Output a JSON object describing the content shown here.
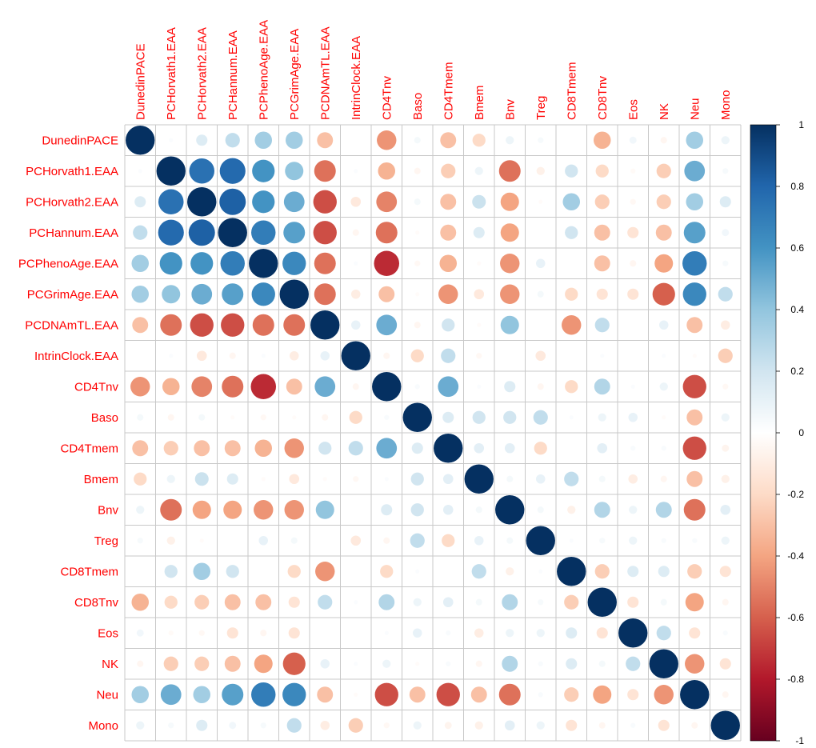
{
  "chart_data": {
    "type": "heatmap",
    "subtype": "correlation-circles",
    "title": "",
    "variables": [
      "DunedinPACE",
      "PCHorvath1.EAA",
      "PCHorvath2.EAA",
      "PCHannum.EAA",
      "PCPhenoAge.EAA",
      "PCGrimAge.EAA",
      "PCDNAmTL.EAA",
      "IntrinClock.EAA",
      "CD4Tnv",
      "Baso",
      "CD4Tmem",
      "Bmem",
      "Bnv",
      "Treg",
      "CD8Tmem",
      "CD8Tnv",
      "Eos",
      "NK",
      "Neu",
      "Mono"
    ],
    "matrix": [
      [
        1.0,
        0.02,
        0.15,
        0.25,
        0.35,
        0.35,
        -0.3,
        0.0,
        -0.45,
        0.05,
        -0.3,
        -0.2,
        0.08,
        0.04,
        0.0,
        -0.35,
        0.06,
        -0.05,
        0.35,
        0.08
      ],
      [
        0.02,
        1.0,
        0.75,
        0.78,
        0.6,
        0.4,
        -0.55,
        0.02,
        -0.35,
        -0.05,
        -0.25,
        0.08,
        -0.55,
        -0.08,
        0.2,
        -0.2,
        -0.03,
        -0.25,
        0.5,
        0.04
      ],
      [
        0.15,
        0.75,
        1.0,
        0.82,
        0.6,
        0.5,
        -0.65,
        -0.12,
        -0.5,
        0.05,
        -0.3,
        0.22,
        -0.4,
        -0.02,
        0.35,
        -0.25,
        -0.04,
        -0.25,
        0.35,
        0.15
      ],
      [
        0.25,
        0.78,
        0.82,
        1.0,
        0.7,
        0.55,
        -0.65,
        -0.05,
        -0.55,
        -0.02,
        -0.3,
        0.15,
        -0.4,
        0.0,
        0.2,
        -0.3,
        -0.15,
        -0.3,
        0.55,
        0.06
      ],
      [
        0.35,
        0.6,
        0.6,
        0.7,
        1.0,
        0.65,
        -0.55,
        0.02,
        -0.75,
        -0.04,
        -0.35,
        -0.02,
        -0.45,
        0.1,
        0.0,
        -0.3,
        -0.05,
        -0.4,
        0.7,
        0.04
      ],
      [
        0.35,
        0.4,
        0.5,
        0.55,
        0.65,
        1.0,
        -0.55,
        -0.1,
        -0.3,
        -0.02,
        -0.45,
        -0.12,
        -0.45,
        0.05,
        -0.2,
        -0.15,
        -0.15,
        -0.6,
        0.65,
        0.25
      ],
      [
        -0.3,
        -0.55,
        -0.65,
        -0.65,
        -0.55,
        -0.55,
        1.0,
        0.1,
        0.5,
        -0.05,
        0.2,
        -0.02,
        0.4,
        0.0,
        -0.45,
        0.25,
        0.0,
        0.1,
        -0.3,
        -0.1
      ],
      [
        0.0,
        0.02,
        -0.12,
        -0.05,
        0.02,
        -0.1,
        0.1,
        1.0,
        -0.05,
        -0.2,
        0.25,
        -0.04,
        0.0,
        -0.12,
        0.0,
        0.02,
        0.0,
        0.02,
        -0.02,
        -0.25
      ],
      [
        -0.45,
        -0.35,
        -0.5,
        -0.55,
        -0.75,
        -0.3,
        0.5,
        -0.05,
        1.0,
        0.03,
        0.5,
        0.02,
        0.15,
        -0.05,
        -0.2,
        0.3,
        0.02,
        0.08,
        -0.65,
        -0.04
      ],
      [
        0.05,
        -0.05,
        0.05,
        -0.02,
        -0.04,
        -0.02,
        -0.05,
        -0.2,
        0.03,
        1.0,
        0.15,
        0.2,
        0.2,
        0.25,
        0.02,
        0.08,
        0.1,
        -0.02,
        -0.3,
        0.08
      ],
      [
        -0.3,
        -0.25,
        -0.3,
        -0.3,
        -0.35,
        -0.45,
        0.2,
        0.25,
        0.5,
        0.15,
        1.0,
        0.12,
        0.12,
        -0.2,
        0.0,
        0.12,
        0.03,
        0.03,
        -0.65,
        -0.06
      ],
      [
        -0.2,
        0.08,
        0.22,
        0.15,
        -0.02,
        -0.12,
        -0.02,
        -0.04,
        0.02,
        0.2,
        0.12,
        1.0,
        0.05,
        0.1,
        0.25,
        0.05,
        -0.1,
        -0.05,
        -0.3,
        -0.08
      ],
      [
        0.08,
        -0.55,
        -0.4,
        -0.4,
        -0.45,
        -0.45,
        0.4,
        0.0,
        0.15,
        0.2,
        0.12,
        0.05,
        1.0,
        0.05,
        -0.08,
        0.3,
        0.08,
        0.3,
        -0.55,
        0.12
      ],
      [
        0.04,
        -0.08,
        -0.02,
        0.0,
        0.1,
        0.05,
        0.0,
        -0.12,
        -0.05,
        0.25,
        -0.2,
        0.1,
        0.05,
        1.0,
        0.02,
        0.04,
        0.08,
        0.03,
        0.03,
        0.08
      ],
      [
        0.0,
        0.2,
        0.35,
        0.2,
        0.0,
        -0.2,
        -0.45,
        0.0,
        -0.2,
        0.02,
        0.0,
        0.25,
        -0.08,
        0.02,
        1.0,
        -0.25,
        0.15,
        0.15,
        -0.25,
        -0.15
      ],
      [
        -0.35,
        -0.2,
        -0.25,
        -0.3,
        -0.3,
        -0.15,
        0.25,
        0.02,
        0.3,
        0.08,
        0.12,
        0.05,
        0.3,
        0.04,
        -0.25,
        1.0,
        -0.15,
        0.05,
        -0.4,
        -0.05
      ],
      [
        0.06,
        -0.03,
        -0.04,
        -0.15,
        -0.05,
        -0.15,
        0.0,
        0.0,
        0.02,
        0.1,
        0.03,
        -0.1,
        0.08,
        0.08,
        0.15,
        -0.15,
        1.0,
        0.25,
        -0.15,
        0.03
      ],
      [
        -0.05,
        -0.25,
        -0.25,
        -0.3,
        -0.4,
        -0.6,
        0.1,
        0.02,
        0.08,
        -0.02,
        0.03,
        -0.05,
        0.3,
        0.03,
        0.15,
        0.05,
        0.25,
        1.0,
        -0.45,
        -0.15
      ],
      [
        0.35,
        0.5,
        0.35,
        0.55,
        0.7,
        0.65,
        -0.3,
        -0.02,
        -0.65,
        -0.3,
        -0.65,
        -0.3,
        -0.55,
        0.03,
        -0.25,
        -0.4,
        -0.15,
        -0.45,
        1.0,
        -0.05
      ],
      [
        0.08,
        0.04,
        0.15,
        0.06,
        0.04,
        0.25,
        -0.1,
        -0.25,
        -0.04,
        0.08,
        -0.06,
        -0.08,
        0.12,
        0.08,
        -0.15,
        -0.05,
        0.03,
        -0.15,
        -0.05,
        1.0
      ]
    ],
    "colorbar": {
      "range": [
        -1,
        1
      ],
      "tick_labels": [
        "1",
        "0.8",
        "0.6",
        "0.4",
        "0.2",
        "0",
        "-0.2",
        "-0.4",
        "-0.6",
        "-0.8",
        "-1"
      ]
    },
    "legend_position": "right",
    "grid": true
  },
  "colors": {
    "label": "#ff0000",
    "grid": "#c8c8c8",
    "gradient_pos": [
      "#ffffff",
      "#d1e5f0",
      "#92c5de",
      "#4393c3",
      "#2166ac",
      "#053061"
    ],
    "gradient_neg": [
      "#ffffff",
      "#fddbc7",
      "#f4a582",
      "#d6604d",
      "#b2182b",
      "#67001f"
    ]
  }
}
